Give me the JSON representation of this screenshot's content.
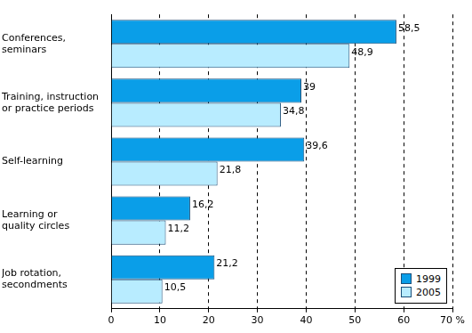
{
  "chart_data": {
    "type": "bar",
    "orientation": "horizontal",
    "categories": [
      [
        "Conferences,",
        "seminars"
      ],
      [
        "Training, instruction",
        "or practice periods"
      ],
      [
        "Self-learning"
      ],
      [
        "Learning or",
        "quality circles"
      ],
      [
        "Job rotation,",
        "secondments"
      ]
    ],
    "series": [
      {
        "name": "1999",
        "color": "#0a9ee8",
        "values": [
          58.5,
          39,
          39.6,
          16.2,
          21.2
        ],
        "value_labels": [
          "58,5",
          "39",
          "39,6",
          "16,2",
          "21,2"
        ]
      },
      {
        "name": "2005",
        "color": "#b8ecff",
        "values": [
          48.9,
          34.8,
          21.8,
          11.2,
          10.5
        ],
        "value_labels": [
          "48,9",
          "34,8",
          "21,8",
          "11,2",
          "10,5"
        ]
      }
    ],
    "xlim": [
      0,
      70
    ],
    "xticks": [
      0,
      10,
      20,
      30,
      40,
      50,
      60,
      {
        "value": 70,
        "label": "70 %"
      }
    ],
    "grid": true,
    "legend": "bottom right",
    "data_labels": true
  }
}
